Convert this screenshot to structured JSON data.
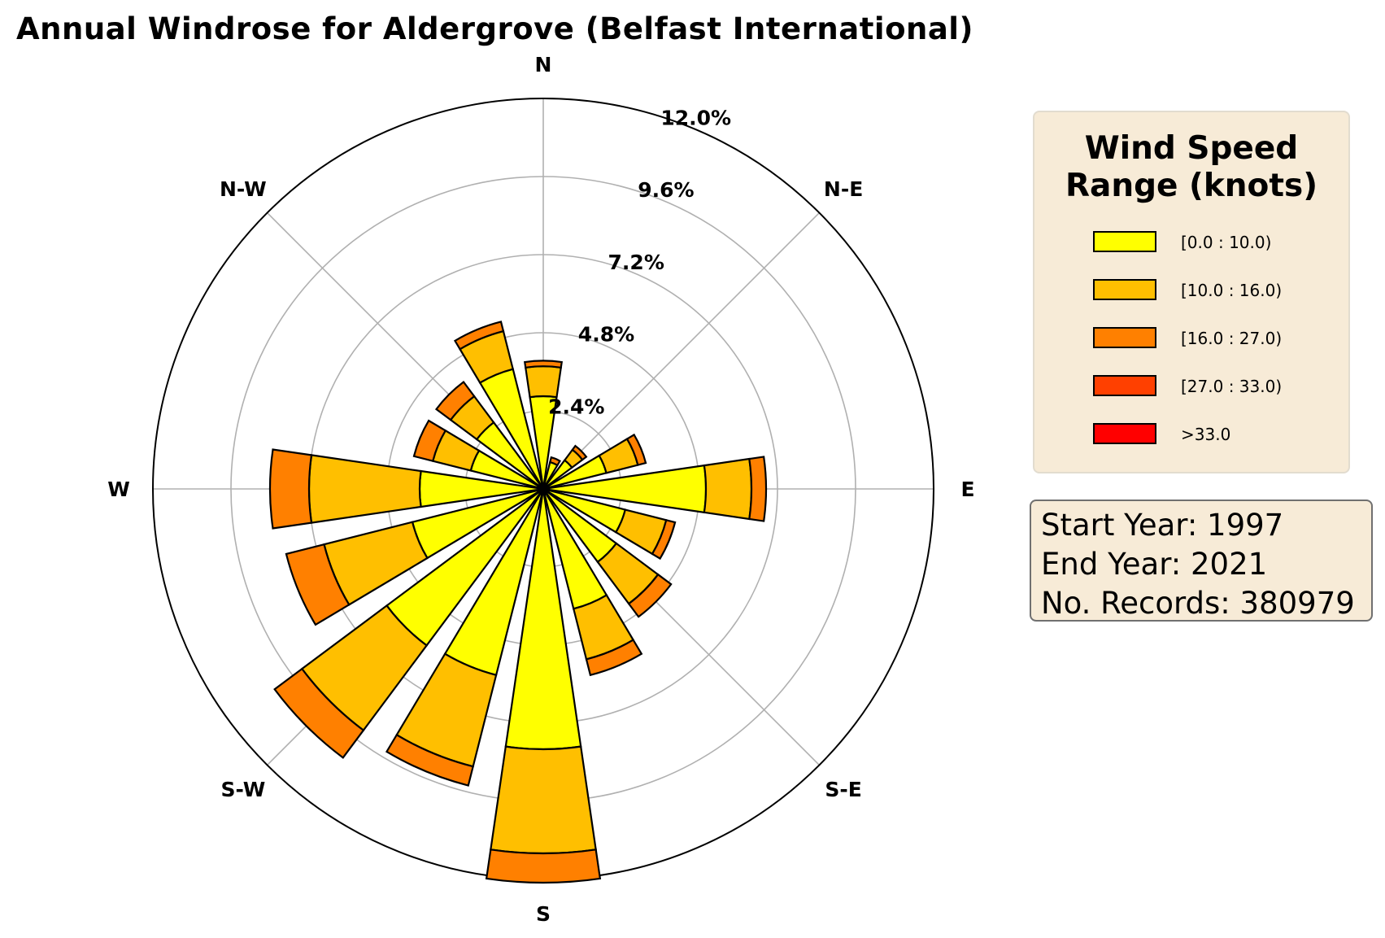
{
  "title": "Annual Windrose for Aldergrove (Belfast International)",
  "colors": {
    "bins": [
      "#ffff00",
      "#ffbf00",
      "#ff8000",
      "#ff4000",
      "#ff0000"
    ],
    "panel_background": "#f7ebd7",
    "grid": "#b0b0b0"
  },
  "legend": {
    "title_line1": "Wind Speed",
    "title_line2": "Range (knots)",
    "items": [
      "[0.0 : 10.0)",
      "[10.0 : 16.0)",
      "[16.0 : 27.0)",
      "[27.0 : 33.0)",
      ">33.0"
    ]
  },
  "info": {
    "start_year": "Start Year: 1997",
    "end_year": "End Year: 2021",
    "records": "No. Records: 380979"
  },
  "chart_data": {
    "type": "windrose",
    "title": "Annual Windrose for Aldergrove (Belfast International)",
    "direction_labels": [
      "N",
      "N-E",
      "E",
      "S-E",
      "S",
      "S-W",
      "W",
      "N-W"
    ],
    "radial_ticks": [
      "2.4%",
      "4.8%",
      "7.2%",
      "9.6%",
      "12.0%"
    ],
    "radial_max": 12.0,
    "grid": true,
    "legend_placement": "right",
    "legend_title": "Wind Speed Range (knots)",
    "speed_bins": [
      "[0.0 : 10.0)",
      "[10.0 : 16.0)",
      "[16.0 : 27.0)",
      "[27.0 : 33.0)",
      ">33.0"
    ],
    "sectors": [
      {
        "direction_deg": 0,
        "values": [
          2.85,
          0.92,
          0.17,
          0.0,
          0.0
        ]
      },
      {
        "direction_deg": 22.5,
        "values": [
          0.85,
          0.0,
          0.15,
          0.0,
          0.0
        ]
      },
      {
        "direction_deg": 45,
        "values": [
          1.1,
          0.4,
          0.15,
          0.0,
          0.0
        ]
      },
      {
        "direction_deg": 67.5,
        "values": [
          2.0,
          1.0,
          0.25,
          0.0,
          0.0
        ]
      },
      {
        "direction_deg": 90,
        "values": [
          5.0,
          1.4,
          0.45,
          0.0,
          0.0
        ]
      },
      {
        "direction_deg": 112.5,
        "values": [
          2.6,
          1.3,
          0.28,
          0.0,
          0.0
        ]
      },
      {
        "direction_deg": 135,
        "values": [
          2.8,
          1.6,
          0.5,
          0.0,
          0.0
        ]
      },
      {
        "direction_deg": 157.5,
        "values": [
          3.8,
          1.6,
          0.5,
          0.0,
          0.0
        ]
      },
      {
        "direction_deg": 180,
        "values": [
          8.0,
          3.2,
          0.9,
          0.0,
          0.0
        ]
      },
      {
        "direction_deg": 202.5,
        "values": [
          5.9,
          2.9,
          0.6,
          0.0,
          0.0
        ]
      },
      {
        "direction_deg": 225,
        "values": [
          6.0,
          3.25,
          1.05,
          0.0,
          0.0
        ]
      },
      {
        "direction_deg": 247.5,
        "values": [
          4.15,
          2.8,
          1.2,
          0.0,
          0.0
        ]
      },
      {
        "direction_deg": 270,
        "values": [
          3.8,
          3.4,
          1.2,
          0.0,
          0.0
        ]
      },
      {
        "direction_deg": 292.5,
        "values": [
          2.3,
          1.2,
          0.6,
          0.0,
          0.0
        ]
      },
      {
        "direction_deg": 315,
        "values": [
          2.55,
          1.0,
          0.55,
          0.0,
          0.0
        ]
      },
      {
        "direction_deg": 337.5,
        "values": [
          3.8,
          1.2,
          0.3,
          0.0,
          0.0
        ]
      }
    ]
  }
}
